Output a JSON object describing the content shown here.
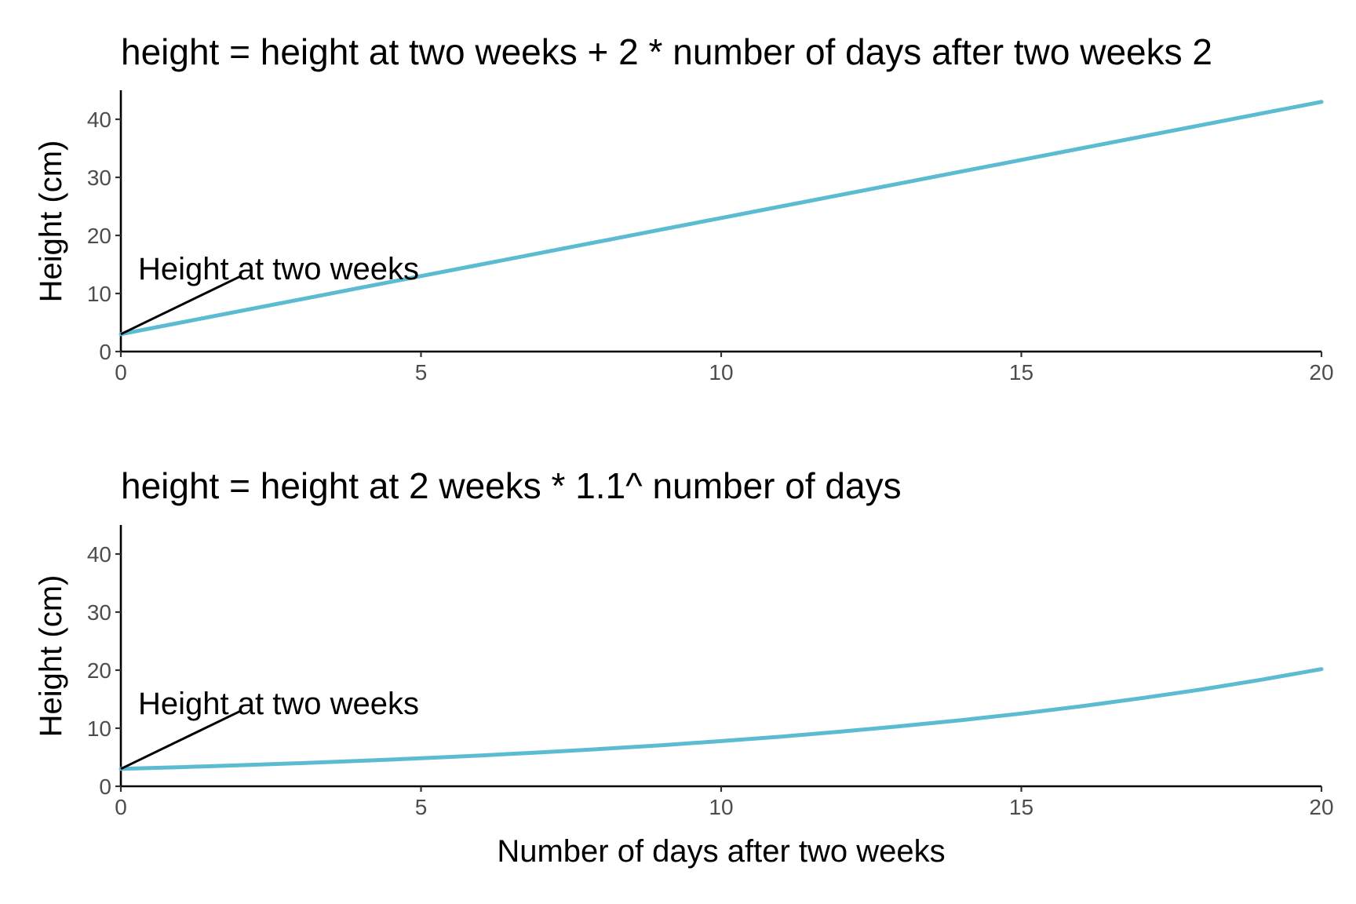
{
  "colors": {
    "line": "#5bbcd1",
    "axis": "#000000",
    "tick_text": "#4d4d4d",
    "background": "#ffffff"
  },
  "chart_data": [
    {
      "type": "line",
      "title": "height = height at two weeks + 2 * number of days after two weeks 2",
      "xlabel": "",
      "ylabel": "Height (cm)",
      "xlim": [
        0,
        20
      ],
      "ylim": [
        0,
        45
      ],
      "x_ticks": [
        0,
        5,
        10,
        15,
        20
      ],
      "y_ticks": [
        0,
        10,
        20,
        30,
        40
      ],
      "grid": false,
      "series": [
        {
          "x": [
            0,
            1,
            2,
            3,
            4,
            5,
            6,
            7,
            8,
            9,
            10,
            11,
            12,
            13,
            14,
            15,
            16,
            17,
            18,
            19,
            20
          ],
          "values": [
            3,
            5,
            7,
            9,
            11,
            13,
            15,
            17,
            19,
            21,
            23,
            25,
            27,
            29,
            31,
            33,
            35,
            37,
            39,
            41,
            43
          ]
        }
      ],
      "annotation": {
        "text": "Height at two weeks",
        "point": [
          0,
          3
        ],
        "label_at": [
          2,
          13
        ]
      }
    },
    {
      "type": "line",
      "title": "height = height at 2 weeks * 1.1^ number of days",
      "xlabel": "Number of days after two weeks",
      "ylabel": "Height (cm)",
      "xlim": [
        0,
        20
      ],
      "ylim": [
        0,
        45
      ],
      "x_ticks": [
        0,
        5,
        10,
        15,
        20
      ],
      "y_ticks": [
        0,
        10,
        20,
        30,
        40
      ],
      "grid": false,
      "series": [
        {
          "x": [
            0,
            1,
            2,
            3,
            4,
            5,
            6,
            7,
            8,
            9,
            10,
            11,
            12,
            13,
            14,
            15,
            16,
            17,
            18,
            19,
            20
          ],
          "values": [
            3,
            3.3,
            3.63,
            3.99,
            4.39,
            4.83,
            5.31,
            5.85,
            6.43,
            7.07,
            7.78,
            8.56,
            9.42,
            10.36,
            11.39,
            12.53,
            13.79,
            15.17,
            16.68,
            18.35,
            20.18
          ]
        }
      ],
      "annotation": {
        "text": "Height at two weeks",
        "point": [
          0,
          3
        ],
        "label_at": [
          2,
          13
        ]
      }
    }
  ]
}
